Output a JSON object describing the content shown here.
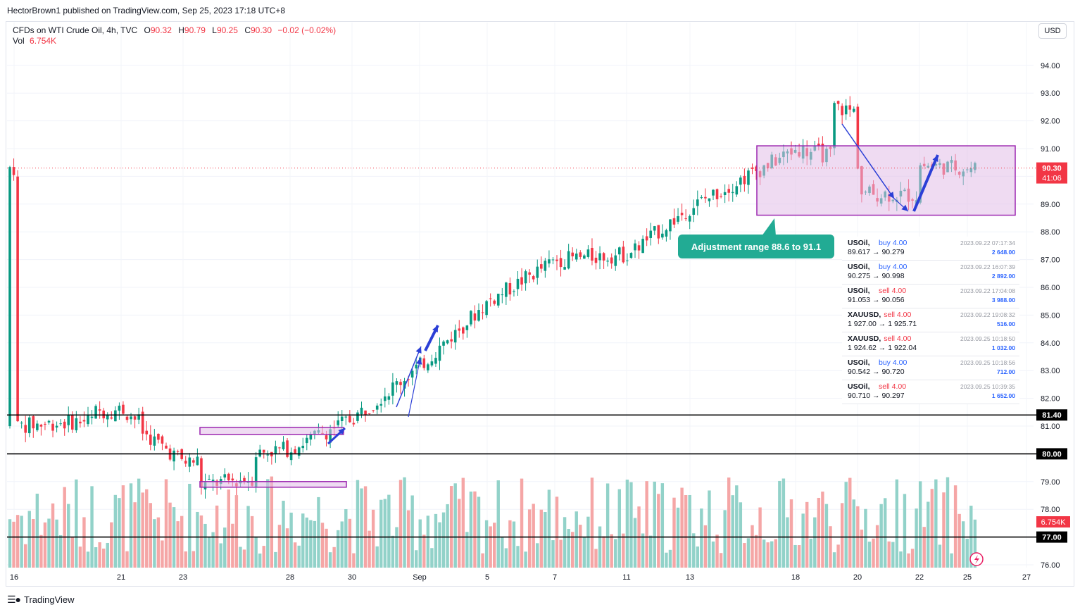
{
  "header": {
    "published": "HectorBrown1 published on TradingView.com, Sep 25, 2023 17:18 UTC+8"
  },
  "legend": {
    "symbol": "CFDs on WTI Crude Oil, 4h, TVC",
    "o_label": "O",
    "o_value": "90.32",
    "h_label": "H",
    "h_value": "90.79",
    "l_label": "L",
    "l_value": "90.25",
    "c_label": "C",
    "c_value": "90.30",
    "change": "−0.02 (−0.02%)",
    "vol_label": "Vol",
    "vol_value": "6.754K"
  },
  "currency_button": "USD",
  "footer": {
    "brand": "TradingView"
  },
  "annotation": "Adjustment range 88.6 to 91.1",
  "trades": [
    {
      "symbol": "USOil",
      "side": "buy",
      "side_label": "buy 4.00",
      "prices": "89.617 → 90.279",
      "time": "2023.09.22 07:17:34",
      "pnl": "2 648.00"
    },
    {
      "symbol": "USOil",
      "side": "buy",
      "side_label": "buy 4.00",
      "prices": "90.275 → 90.998",
      "time": "2023.09.22 16:07:39",
      "pnl": "2 892.00"
    },
    {
      "symbol": "USOil",
      "side": "sell",
      "side_label": "sell 4.00",
      "prices": "91.053 → 90.056",
      "time": "2023.09.22 17:04:08",
      "pnl": "3 988.00"
    },
    {
      "symbol": "XAUUSD",
      "side": "sell",
      "side_label": "sell 4.00",
      "prices": "1 927.00 → 1 925.71",
      "time": "2023.09.22 19:08:32",
      "pnl": "516.00"
    },
    {
      "symbol": "XAUUSD",
      "side": "sell",
      "side_label": "sell 4.00",
      "prices": "1 924.62 → 1 922.04",
      "time": "2023.09.25 10:18:50",
      "pnl": "1 032.00"
    },
    {
      "symbol": "USOil",
      "side": "buy",
      "side_label": "buy 4.00",
      "prices": "90.542 → 90.720",
      "time": "2023.09.25 10:18:56",
      "pnl": "712.00"
    },
    {
      "symbol": "USOil",
      "side": "sell",
      "side_label": "sell 4.00",
      "prices": "90.710 → 90.297",
      "time": "2023.09.25 10:39:35",
      "pnl": "1 652.00"
    }
  ],
  "colors": {
    "up": "#089981",
    "down": "#f23645",
    "vol_up": "#92d2c9",
    "vol_down": "#f5a6a6",
    "box_fill": "#e1bee7",
    "box_border": "#9c27b0",
    "arrow": "#2b3fd6",
    "annot": "#22ab94"
  },
  "chart_data": {
    "type": "candlestick",
    "ylim": [
      76,
      95
    ],
    "y_ticks": [
      "76.00",
      "77.00",
      "78.00",
      "79.00",
      "80.00",
      "81.00",
      "82.00",
      "83.00",
      "84.00",
      "85.00",
      "86.00",
      "87.00",
      "88.00",
      "89.00",
      "90.00",
      "91.00",
      "92.00",
      "93.00",
      "94.00"
    ],
    "x_ticks": [
      "16",
      "21",
      "23",
      "28",
      "30",
      "Sep",
      "5",
      "7",
      "11",
      "13",
      "18",
      "20",
      "22",
      "25",
      "27"
    ],
    "horizontal_levels": [
      {
        "value": 81.4,
        "label": "81.40"
      },
      {
        "value": 80.0,
        "label": "80.00"
      },
      {
        "value": 77.0,
        "label": "77.00"
      }
    ],
    "last_price": {
      "value": 90.3,
      "label": "90.30",
      "countdown": "41:06"
    },
    "volume_label": "6.754K",
    "range_boxes": [
      {
        "top": 91.1,
        "bottom": 88.6
      },
      {
        "top": 80.95,
        "bottom": 80.7
      },
      {
        "top": 79.0,
        "bottom": 78.8
      }
    ],
    "series": [
      {
        "name": "anchor",
        "points": [
          {
            "x": "16",
            "price": 81.0
          },
          {
            "x": "21",
            "price": 81.3
          },
          {
            "x": "23",
            "price": 79.7
          },
          {
            "x": "28",
            "price": 80.2
          },
          {
            "x": "30",
            "price": 81.3
          },
          {
            "x": "Sep",
            "price": 83.2
          },
          {
            "x": "5",
            "price": 85.5
          },
          {
            "x": "7",
            "price": 87.0
          },
          {
            "x": "11",
            "price": 87.2
          },
          {
            "x": "13",
            "price": 88.9
          },
          {
            "x": "18",
            "price": 91.0
          },
          {
            "x": "20",
            "price": 90.5
          },
          {
            "x": "22",
            "price": 90.4
          },
          {
            "x": "25",
            "price": 90.3
          }
        ]
      }
    ]
  }
}
